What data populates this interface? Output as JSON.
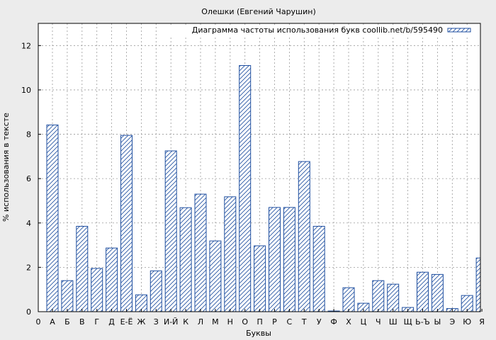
{
  "chart_data": {
    "type": "bar",
    "title": "Олешки (Евгений Чарушин)",
    "xlabel": "Буквы",
    "ylabel": "% использования в тексте",
    "x_start_label": "0",
    "categories": [
      "А",
      "Б",
      "В",
      "Г",
      "Д",
      "Е-Ё",
      "Ж",
      "З",
      "И-Й",
      "К",
      "Л",
      "М",
      "Н",
      "О",
      "П",
      "Р",
      "С",
      "Т",
      "У",
      "Ф",
      "Х",
      "Ц",
      "Ч",
      "Ш",
      "Щ",
      "Ь-Ъ",
      "Ы",
      "Э",
      "Ю",
      "Я"
    ],
    "series": [
      {
        "name": "Диаграмма частоты использования букв coollib.net/b/595490",
        "values": [
          8.42,
          1.4,
          3.85,
          1.95,
          2.87,
          7.95,
          0.76,
          1.84,
          7.25,
          4.69,
          5.3,
          3.19,
          5.18,
          11.1,
          2.97,
          4.7,
          4.7,
          6.77,
          3.85,
          0.03,
          1.08,
          0.38,
          1.4,
          1.24,
          0.19,
          1.78,
          1.68,
          0.14,
          0.73,
          2.42
        ]
      }
    ],
    "ylim": [
      0,
      13
    ],
    "yticks": [
      0,
      2,
      4,
      6,
      8,
      10,
      12
    ],
    "grid": true,
    "legend_position": "top-right",
    "colors": {
      "bar_stroke": "#1f4fa0",
      "hatch": "#1f4fa0",
      "bar_fill": "#ffffff",
      "background": "#ececec",
      "plot_background": "#ffffff",
      "grid": "#9a9a9a"
    }
  }
}
